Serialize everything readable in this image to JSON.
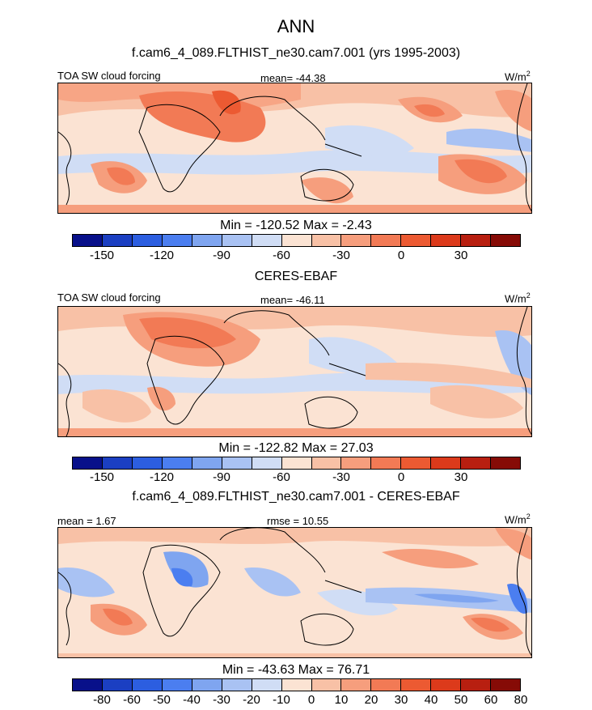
{
  "title": "ANN",
  "panels": [
    {
      "subtitle": "f.cam6_4_089.FLTHIST_ne30.cam7.001 (yrs 1995-2003)",
      "left_label": "TOA SW cloud forcing",
      "center_label": "mean= -44.38",
      "units": "W/m",
      "units_sup": "2",
      "minmax": "Min = -120.52 Max =  -2.43",
      "colorbar_ticks": [
        "-150",
        "-120",
        "-90",
        "-60",
        "-30",
        "0",
        "30"
      ]
    },
    {
      "subtitle": "CERES-EBAF",
      "left_label": "TOA SW cloud forcing",
      "center_label": "mean= -46.11",
      "units": "W/m",
      "units_sup": "2",
      "minmax": "Min = -122.82 Max =  27.03",
      "colorbar_ticks": [
        "-150",
        "-120",
        "-90",
        "-60",
        "-30",
        "0",
        "30"
      ]
    },
    {
      "subtitle": "f.cam6_4_089.FLTHIST_ne30.cam7.001 - CERES-EBAF",
      "left_label": "mean =   1.67",
      "center_label": "rmse =  10.55",
      "units": "W/m",
      "units_sup": "2",
      "minmax": "Min = -43.63 Max =  76.71",
      "colorbar_ticks": [
        "-80",
        "-60",
        "-50",
        "-40",
        "-30",
        "-20",
        "-10",
        "0",
        "10",
        "20",
        "30",
        "40",
        "50",
        "60",
        "80"
      ]
    }
  ],
  "colorbar_colors": [
    "#08108a",
    "#1b3fc2",
    "#2c5ee0",
    "#4b7ef0",
    "#7fa5f0",
    "#a9c2f3",
    "#d0ddf5",
    "#fbe3d3",
    "#f8c1a6",
    "#f69e7d",
    "#f27a55",
    "#ec5a32",
    "#dc3a1b",
    "#b81f10",
    "#860b06"
  ],
  "chart_data": [
    {
      "type": "heatmap",
      "title": "TOA SW cloud forcing",
      "units": "W/m2",
      "statistics": {
        "mean": -44.38,
        "min": -120.52,
        "max": -2.43
      },
      "levels": [
        -150,
        -120,
        -90,
        -60,
        -30,
        0,
        30
      ]
    },
    {
      "type": "heatmap",
      "title": "TOA SW cloud forcing",
      "units": "W/m2",
      "statistics": {
        "mean": -46.11,
        "min": -122.82,
        "max": 27.03
      },
      "levels": [
        -150,
        -120,
        -90,
        -60,
        -30,
        0,
        30
      ]
    },
    {
      "type": "heatmap",
      "units": "W/m2",
      "statistics": {
        "mean": 1.67,
        "rmse": 10.55,
        "min": -43.63,
        "max": 76.71
      },
      "levels": [
        -80,
        -60,
        -50,
        -40,
        -30,
        -20,
        -10,
        0,
        10,
        20,
        30,
        40,
        50,
        60,
        80
      ]
    }
  ]
}
